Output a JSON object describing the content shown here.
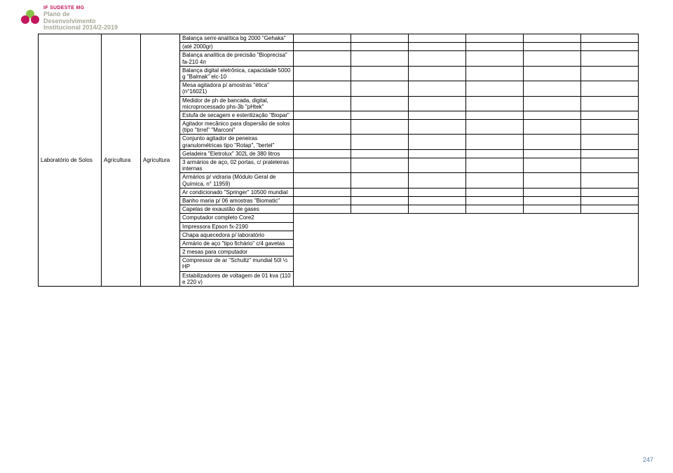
{
  "header": {
    "org": "IF SUDESTE MG",
    "line2": "Plano de",
    "line3": "Desenvolvimento",
    "line4": "Institucional 2014/2-2019"
  },
  "pageNumber": "247",
  "col1": {
    "lab": "Laboratório de Solos",
    "agr1": "Agricultura",
    "agr2": "Agricultura"
  },
  "block1": [
    "Balança semi-analítica bg 2000 \"Gehaka\"",
    "(até 2000gr)",
    "Balança analítica de precisão \"Bioprecisa\" fa-210 4n",
    "Balança digital eletrônica, capacidade 5000 g  \"Balmak\" elc-10",
    "Mesa agitadora p/ amostras \"ética\" (n°16021)",
    "Medidor de ph de bancada, digital, microprocessado  phs-3b \"pHtek\"",
    "Estufa de secagem e esterilização \"Biopar\"",
    "Agitador mecânico para dispersão de solos (tipo \"tirrel\" \"Marconi\"",
    "Conjunto agitador de peneiras granulométricas tipo \"Rotap\", \"bertel\"",
    "Geladeira \"Eletrolux\" 302L de 380 litros",
    "3 armários de aço, 02 portas, c/ prateleiras internas",
    "Armários p/ vidraria (Módulo Geral de Química, n° 11959)",
    "Ar condicionado \"Springer\" 10500 mundial",
    "Banho maria p/ 06 amostras \"Biomatic\"",
    "Capelas de exaustão de gases"
  ],
  "block2": [
    "Computador completo Core2",
    "Impressora Epson fx-2190",
    "Chapa aquecedora p/ laboratório",
    "Armário de aço \"tipo fichário\" c/4 gavetas",
    "2 mesas para computador",
    "Compressor de ar \"Schultz\" mundial 50l ½ HP",
    "Estabilizadores de voltagem de 01 kva (110 e 220 v)"
  ]
}
